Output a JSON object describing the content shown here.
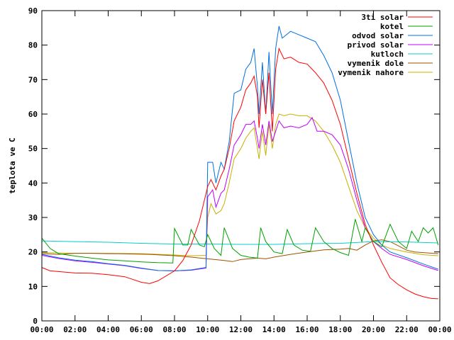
{
  "chart_data": {
    "type": "line",
    "title": "",
    "xlabel": "",
    "ylabel": "teplota ve C",
    "xlim": [
      0,
      24
    ],
    "ylim": [
      0,
      90
    ],
    "xticks": [
      "00:00",
      "02:00",
      "04:00",
      "06:00",
      "08:00",
      "10:00",
      "12:00",
      "14:00",
      "16:00",
      "18:00",
      "20:00",
      "22:00",
      "00:00"
    ],
    "yticks": [
      "0",
      "10",
      "20",
      "30",
      "40",
      "50",
      "60",
      "70",
      "80",
      "90"
    ],
    "grid": false,
    "legend_position": "top-right",
    "series": [
      {
        "name": "3ti solar",
        "color": "#ff0000",
        "points": [
          [
            0,
            15.5
          ],
          [
            0.5,
            14.5
          ],
          [
            1,
            14.3
          ],
          [
            2,
            13.9
          ],
          [
            3,
            13.8
          ],
          [
            4,
            13.4
          ],
          [
            5,
            12.8
          ],
          [
            6,
            11.2
          ],
          [
            6.5,
            10.8
          ],
          [
            7,
            11.6
          ],
          [
            8,
            14.5
          ],
          [
            8.5,
            17.5
          ],
          [
            9,
            22
          ],
          [
            9.5,
            29
          ],
          [
            9.8,
            35
          ],
          [
            10,
            39
          ],
          [
            10.2,
            41
          ],
          [
            10.5,
            38
          ],
          [
            10.8,
            42
          ],
          [
            11,
            44
          ],
          [
            11.3,
            50
          ],
          [
            11.6,
            58
          ],
          [
            12,
            62
          ],
          [
            12.3,
            67
          ],
          [
            12.6,
            69
          ],
          [
            12.8,
            71
          ],
          [
            13,
            65
          ],
          [
            13.1,
            56
          ],
          [
            13.3,
            70
          ],
          [
            13.5,
            60
          ],
          [
            13.7,
            72
          ],
          [
            13.9,
            55
          ],
          [
            14.1,
            73
          ],
          [
            14.3,
            79
          ],
          [
            14.6,
            76
          ],
          [
            15,
            76.5
          ],
          [
            15.5,
            75
          ],
          [
            16,
            74.5
          ],
          [
            16.5,
            72
          ],
          [
            17,
            69
          ],
          [
            17.5,
            64
          ],
          [
            18,
            57
          ],
          [
            18.5,
            47
          ],
          [
            19,
            37
          ],
          [
            19.5,
            28
          ],
          [
            20,
            22
          ],
          [
            20.5,
            17
          ],
          [
            21,
            12.5
          ],
          [
            21.5,
            10.5
          ],
          [
            22,
            9
          ],
          [
            22.5,
            7.8
          ],
          [
            23,
            7
          ],
          [
            23.5,
            6.5
          ],
          [
            23.9,
            6.4
          ]
        ]
      },
      {
        "name": "kotel",
        "color": "#00a000",
        "points": [
          [
            0,
            24
          ],
          [
            0.5,
            21
          ],
          [
            1,
            19.5
          ],
          [
            2,
            18.8
          ],
          [
            3,
            18.2
          ],
          [
            4,
            17.7
          ],
          [
            5,
            17.4
          ],
          [
            6,
            17.1
          ],
          [
            7,
            16.9
          ],
          [
            7.9,
            16.8
          ],
          [
            8,
            26.8
          ],
          [
            8.5,
            22
          ],
          [
            8.8,
            22
          ],
          [
            9,
            26.5
          ],
          [
            9.5,
            22
          ],
          [
            9.8,
            21.5
          ],
          [
            10,
            25
          ],
          [
            10.4,
            21
          ],
          [
            10.8,
            19
          ],
          [
            11,
            27
          ],
          [
            11.5,
            21
          ],
          [
            12,
            19
          ],
          [
            12.5,
            18.5
          ],
          [
            13,
            18.2
          ],
          [
            13.2,
            27
          ],
          [
            13.5,
            23
          ],
          [
            14,
            20
          ],
          [
            14.5,
            19.5
          ],
          [
            14.8,
            26.5
          ],
          [
            15.2,
            22
          ],
          [
            15.7,
            20.5
          ],
          [
            16.2,
            20.2
          ],
          [
            16.5,
            27
          ],
          [
            17,
            23
          ],
          [
            17.5,
            21
          ],
          [
            18,
            19.8
          ],
          [
            18.5,
            19
          ],
          [
            18.9,
            29.5
          ],
          [
            19.3,
            23
          ],
          [
            19.5,
            27
          ],
          [
            20,
            23
          ],
          [
            20.5,
            21.5
          ],
          [
            21,
            28
          ],
          [
            21.5,
            23
          ],
          [
            22,
            21
          ],
          [
            22.3,
            26
          ],
          [
            22.7,
            23
          ],
          [
            23,
            27
          ],
          [
            23.3,
            25.5
          ],
          [
            23.6,
            27
          ],
          [
            23.9,
            22
          ]
        ]
      },
      {
        "name": "odvod solar",
        "color": "#0070e0",
        "points": [
          [
            0,
            19.3
          ],
          [
            1,
            18.3
          ],
          [
            2,
            17.6
          ],
          [
            3,
            17.2
          ],
          [
            4,
            16.6
          ],
          [
            5,
            16.1
          ],
          [
            6,
            15.3
          ],
          [
            7,
            14.6
          ],
          [
            8,
            14.5
          ],
          [
            9,
            14.8
          ],
          [
            9.9,
            15.5
          ],
          [
            10,
            46
          ],
          [
            10.3,
            46
          ],
          [
            10.5,
            40
          ],
          [
            10.8,
            46
          ],
          [
            11,
            44
          ],
          [
            11.3,
            52
          ],
          [
            11.6,
            66
          ],
          [
            12,
            67
          ],
          [
            12.3,
            73
          ],
          [
            12.6,
            75
          ],
          [
            12.8,
            79
          ],
          [
            13,
            68
          ],
          [
            13.1,
            60
          ],
          [
            13.3,
            75
          ],
          [
            13.5,
            60
          ],
          [
            13.7,
            78
          ],
          [
            13.9,
            60
          ],
          [
            14.1,
            79
          ],
          [
            14.3,
            85.5
          ],
          [
            14.5,
            82
          ],
          [
            15,
            84
          ],
          [
            15.5,
            83
          ],
          [
            16,
            82
          ],
          [
            16.5,
            81
          ],
          [
            17,
            77
          ],
          [
            17.5,
            72
          ],
          [
            18,
            64
          ],
          [
            18.5,
            52
          ],
          [
            19,
            40
          ],
          [
            19.5,
            30
          ],
          [
            20,
            25
          ],
          [
            20.5,
            22
          ],
          [
            21,
            20
          ],
          [
            22,
            18.3
          ],
          [
            23,
            16.5
          ],
          [
            23.9,
            15
          ]
        ]
      },
      {
        "name": "privod solar",
        "color": "#c000ff",
        "points": [
          [
            0,
            19
          ],
          [
            1,
            18.1
          ],
          [
            2,
            17.4
          ],
          [
            3,
            17
          ],
          [
            4,
            16.5
          ],
          [
            5,
            16
          ],
          [
            6,
            15.2
          ],
          [
            7,
            14.6
          ],
          [
            8,
            14.5
          ],
          [
            9,
            14.7
          ],
          [
            9.9,
            15.3
          ],
          [
            10,
            36
          ],
          [
            10.3,
            38
          ],
          [
            10.5,
            33
          ],
          [
            10.8,
            37
          ],
          [
            11,
            38
          ],
          [
            11.3,
            44
          ],
          [
            11.6,
            51
          ],
          [
            12,
            54
          ],
          [
            12.3,
            57
          ],
          [
            12.6,
            57
          ],
          [
            12.8,
            58
          ],
          [
            13,
            53
          ],
          [
            13.1,
            50
          ],
          [
            13.3,
            57
          ],
          [
            13.5,
            51
          ],
          [
            13.7,
            58
          ],
          [
            13.9,
            52
          ],
          [
            14.1,
            55
          ],
          [
            14.3,
            58
          ],
          [
            14.6,
            56
          ],
          [
            15,
            56.5
          ],
          [
            15.5,
            56
          ],
          [
            16,
            57
          ],
          [
            16.3,
            59
          ],
          [
            16.6,
            55
          ],
          [
            17,
            55
          ],
          [
            17.5,
            54
          ],
          [
            18,
            51
          ],
          [
            18.5,
            44
          ],
          [
            19,
            35
          ],
          [
            19.5,
            27
          ],
          [
            20,
            23
          ],
          [
            20.5,
            21
          ],
          [
            21,
            19.3
          ],
          [
            22,
            17.8
          ],
          [
            23,
            16
          ],
          [
            23.9,
            14.6
          ]
        ]
      },
      {
        "name": "kutloch",
        "color": "#00d0d0",
        "points": [
          [
            0,
            23.2
          ],
          [
            2,
            23
          ],
          [
            4,
            22.8
          ],
          [
            6,
            22.5
          ],
          [
            8,
            22.3
          ],
          [
            10,
            22.3
          ],
          [
            12,
            22.2
          ],
          [
            14,
            22.2
          ],
          [
            16,
            22.4
          ],
          [
            18,
            22.5
          ],
          [
            20,
            23
          ],
          [
            22,
            22.9
          ],
          [
            23.9,
            22.6
          ]
        ]
      },
      {
        "name": "vymenik dole",
        "color": "#a05000",
        "points": [
          [
            0,
            19.5
          ],
          [
            1,
            19.3
          ],
          [
            2,
            19.6
          ],
          [
            3,
            19.6
          ],
          [
            4,
            19.5
          ],
          [
            4.5,
            19.5
          ],
          [
            6.5,
            19.3
          ],
          [
            8,
            18.9
          ],
          [
            9,
            18.5
          ],
          [
            10,
            18
          ],
          [
            11,
            17.5
          ],
          [
            11.5,
            17.2
          ],
          [
            12,
            17.8
          ],
          [
            13,
            18.2
          ],
          [
            13.5,
            18
          ],
          [
            14,
            18.5
          ],
          [
            15,
            19.3
          ],
          [
            16,
            20
          ],
          [
            17,
            20.6
          ],
          [
            18,
            20.8
          ],
          [
            18.5,
            21
          ],
          [
            19,
            20.5
          ],
          [
            19.5,
            22
          ],
          [
            20,
            23.2
          ],
          [
            20.5,
            23.5
          ],
          [
            21,
            23
          ],
          [
            22,
            20.5
          ],
          [
            22.5,
            20
          ],
          [
            23,
            19.8
          ],
          [
            23.9,
            19.5
          ]
        ]
      },
      {
        "name": "vymenik nahore",
        "color": "#c8b000",
        "points": [
          [
            0,
            19.8
          ],
          [
            2,
            19.6
          ],
          [
            4,
            19.6
          ],
          [
            6,
            19.5
          ],
          [
            8,
            19.1
          ],
          [
            9,
            18.9
          ],
          [
            9.9,
            19
          ],
          [
            10,
            30
          ],
          [
            10.2,
            34
          ],
          [
            10.5,
            31
          ],
          [
            10.8,
            32
          ],
          [
            11,
            34
          ],
          [
            11.3,
            40
          ],
          [
            11.6,
            47
          ],
          [
            12,
            50
          ],
          [
            12.3,
            53
          ],
          [
            12.6,
            55
          ],
          [
            12.8,
            56
          ],
          [
            13,
            50
          ],
          [
            13.1,
            47
          ],
          [
            13.3,
            55
          ],
          [
            13.5,
            48
          ],
          [
            13.7,
            57
          ],
          [
            13.9,
            50
          ],
          [
            14.1,
            57
          ],
          [
            14.3,
            60
          ],
          [
            14.6,
            59.5
          ],
          [
            15,
            60
          ],
          [
            15.5,
            59.5
          ],
          [
            16,
            59.5
          ],
          [
            16.5,
            58
          ],
          [
            17,
            55
          ],
          [
            17.5,
            51
          ],
          [
            18,
            46
          ],
          [
            18.5,
            39
          ],
          [
            19,
            32
          ],
          [
            19.5,
            27
          ],
          [
            20,
            24
          ],
          [
            20.5,
            22
          ],
          [
            21,
            21
          ],
          [
            22,
            20
          ],
          [
            23,
            19.2
          ],
          [
            23.9,
            18.9
          ]
        ]
      }
    ]
  }
}
